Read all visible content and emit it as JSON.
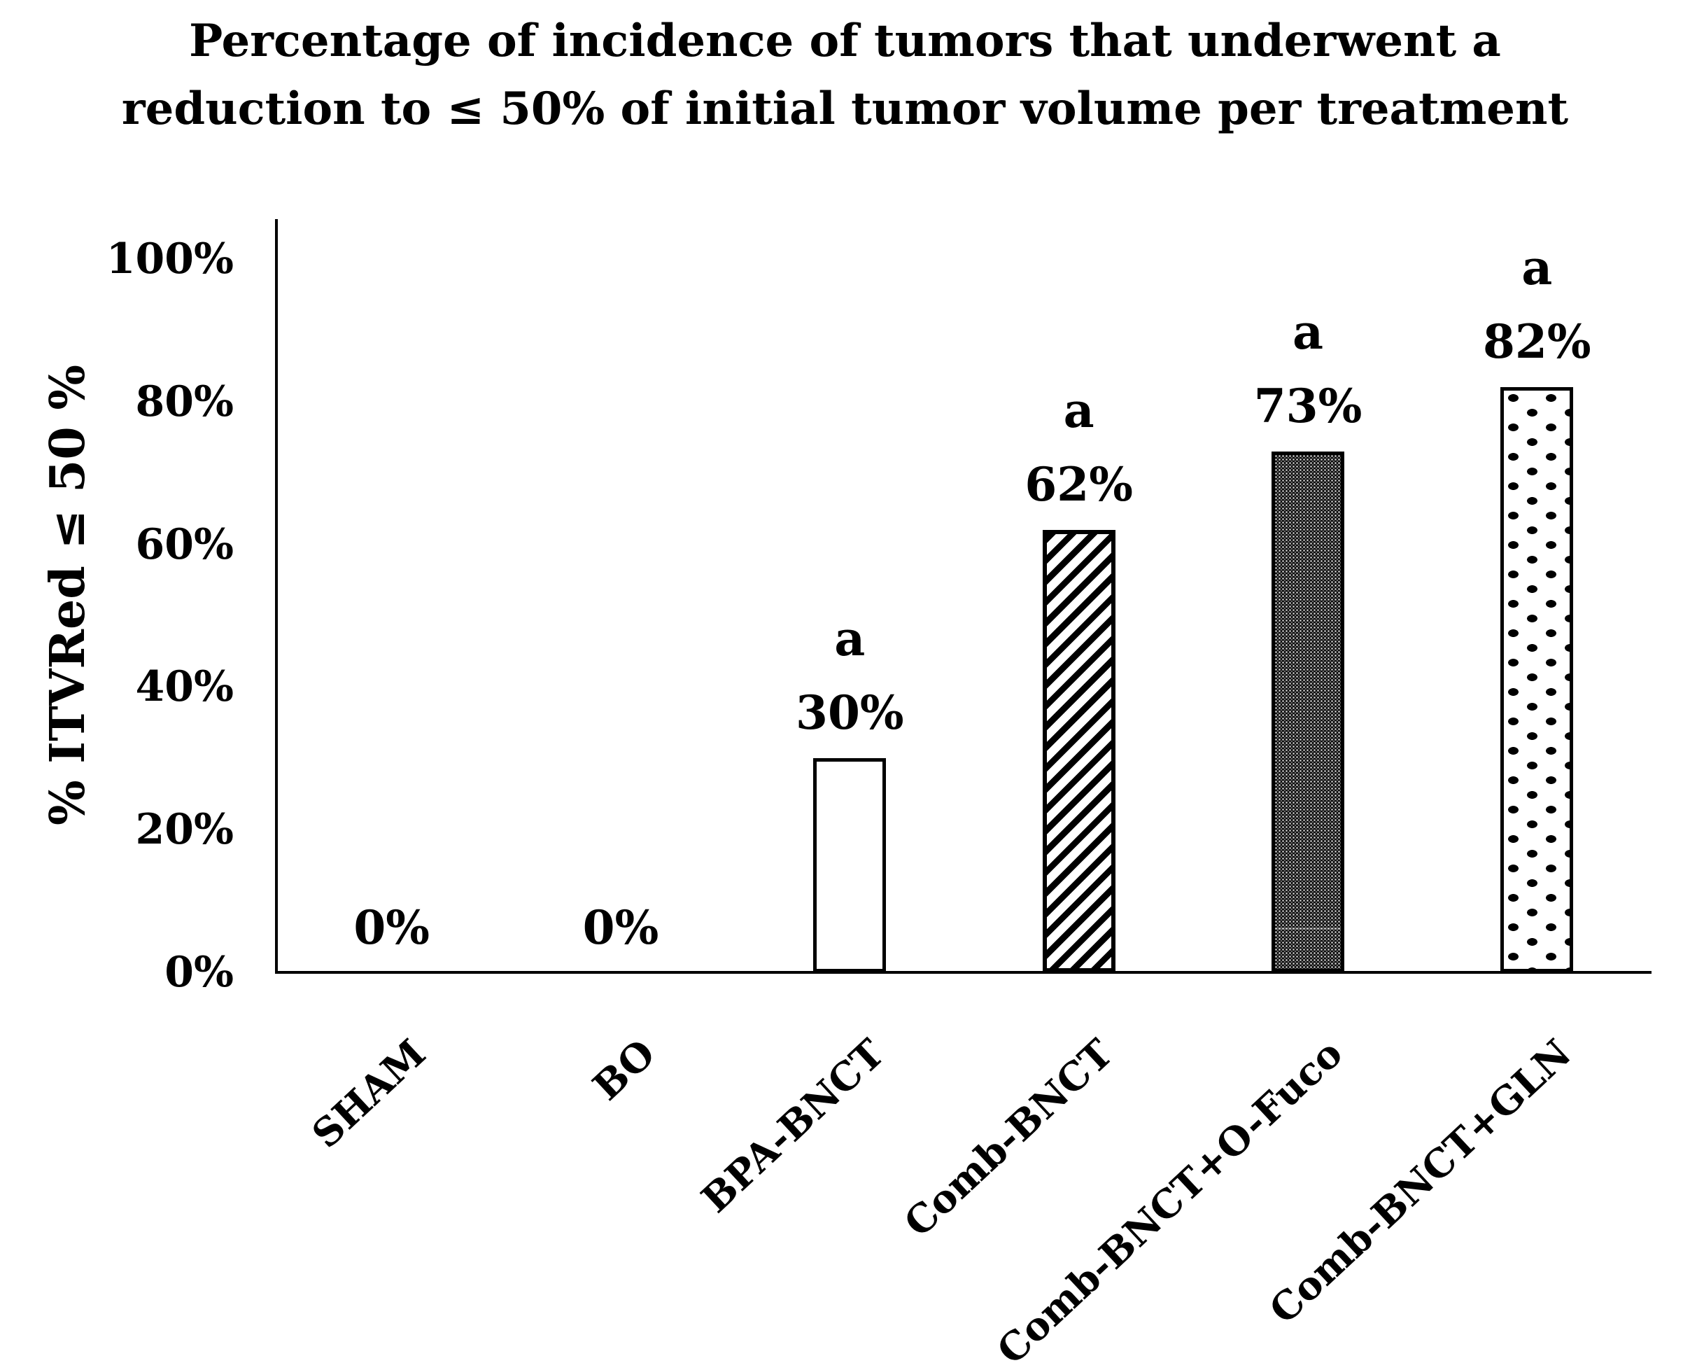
{
  "chart_data": {
    "type": "bar",
    "title": "Percentage of incidence of tumors that underwent a reduction to ≤ 50% of initial tumor volume per treatment",
    "title_lines": [
      "Percentage of incidence of tumors that underwent a",
      "reduction to ≤ 50% of initial tumor volume per treatment"
    ],
    "xlabel": "",
    "ylabel": "% ITVRed ≤ 50 %",
    "categories": [
      "SHAM",
      "BO",
      "BPA-BNCT",
      "Comb-BNCT",
      "Comb-BNCT+O-Fuco",
      "Comb-BNCT+GLN"
    ],
    "values": [
      0,
      0,
      30,
      62,
      73,
      82
    ],
    "value_labels": [
      "0%",
      "0%",
      "30%",
      "62%",
      "73%",
      "82%"
    ],
    "annotations": [
      "",
      "",
      "a",
      "a",
      "a",
      "a"
    ],
    "bar_patterns": [
      "none",
      "none",
      "solid-white",
      "diagonal-stripes",
      "dark-dotted",
      "polka-dots"
    ],
    "ylim": [
      0,
      100
    ],
    "ytick_labels": [
      "0%",
      "20%",
      "40%",
      "60%",
      "80%",
      "100%"
    ],
    "ytick_values": [
      0,
      20,
      40,
      60,
      80,
      100
    ],
    "grid": false,
    "legend_position": "none",
    "colors": {
      "foreground": "#000000",
      "background": "#ffffff",
      "dark_bar_fill": "#0d0d0d"
    }
  }
}
